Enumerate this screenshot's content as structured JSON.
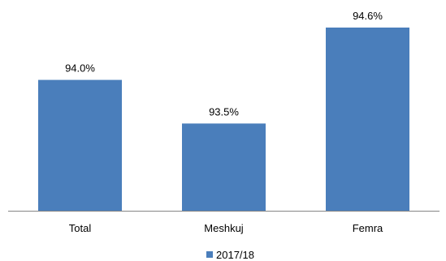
{
  "chart_data": {
    "type": "bar",
    "title": "",
    "xlabel": "",
    "ylabel": "",
    "categories": [
      "Total",
      "Meshkuj",
      "Femra"
    ],
    "series": [
      {
        "name": "2017/18",
        "values": [
          94.0,
          93.5,
          94.6
        ],
        "labels": [
          "94.0%",
          "93.5%",
          "94.6%"
        ]
      }
    ],
    "ylim": [
      92.5,
      95.0
    ],
    "grid": false,
    "legend_position": "bottom",
    "colors": {
      "bar": "#4A7EBB",
      "axis": "#868686"
    }
  }
}
